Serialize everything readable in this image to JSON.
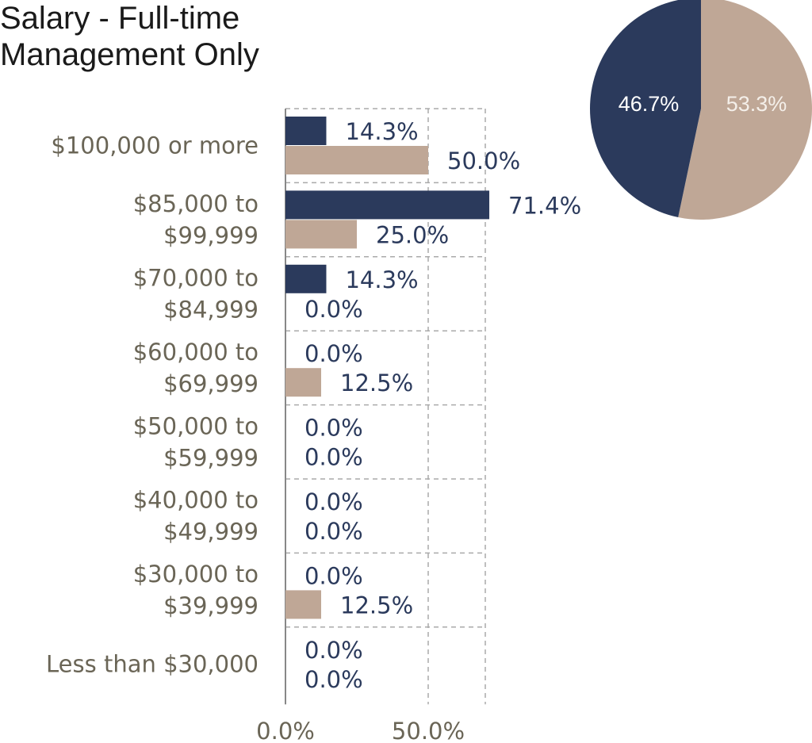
{
  "title_lines": [
    "Salary - Full-time",
    "Management Only"
  ],
  "colors": {
    "series_a": "#2b3a5c",
    "series_b": "#bfa796",
    "grid": "#aaaaaa",
    "axis": "#888888",
    "pie_label_a": "#ffffff",
    "pie_label_b": "#f4efe9"
  },
  "chart_data": [
    {
      "type": "bar",
      "orientation": "horizontal",
      "categories": [
        [
          "$100,000 or more"
        ],
        [
          "$85,000 to",
          "$99,999"
        ],
        [
          "$70,000 to",
          "$84,999"
        ],
        [
          "$60,000 to",
          "$69,999"
        ],
        [
          "$50,000 to",
          "$59,999"
        ],
        [
          "$40,000 to",
          "$49,999"
        ],
        [
          "$30,000 to",
          "$39,999"
        ],
        [
          "Less than $30,000"
        ]
      ],
      "series": [
        {
          "values": [
            14.3,
            71.4,
            14.3,
            0.0,
            0.0,
            0.0,
            0.0,
            0.0
          ],
          "labels": [
            "14.3%",
            "71.4%",
            "14.3%",
            "0.0%",
            "0.0%",
            "0.0%",
            "0.0%",
            "0.0%"
          ]
        },
        {
          "values": [
            50.0,
            25.0,
            0.0,
            12.5,
            0.0,
            0.0,
            12.5,
            0.0
          ],
          "labels": [
            "50.0%",
            "25.0%",
            "0.0%",
            "12.5%",
            "0.0%",
            "0.0%",
            "12.5%",
            "0.0%"
          ]
        }
      ],
      "x_ticks": [
        0,
        50
      ],
      "x_tick_labels": [
        "0.0%",
        "50.0%"
      ],
      "xlim": [
        0,
        70
      ],
      "grid": true
    },
    {
      "type": "pie",
      "slices": [
        {
          "value": 46.7,
          "label": "46.7%"
        },
        {
          "value": 53.3,
          "label": "53.3%"
        }
      ]
    }
  ]
}
